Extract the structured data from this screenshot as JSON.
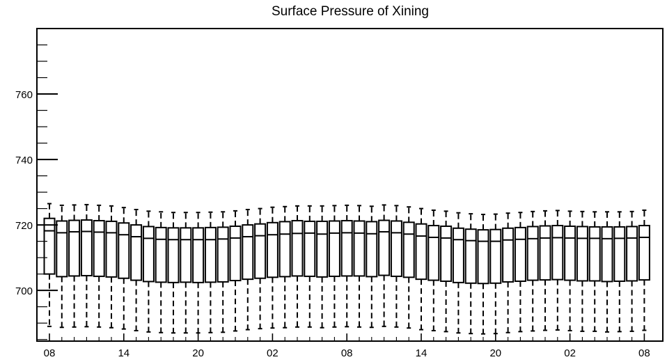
{
  "chart_data": {
    "type": "boxplot",
    "title": "Surface Pressure of Xining",
    "xlabel": "",
    "ylabel": "",
    "ylim": [
      684.5,
      780
    ],
    "y_ticks": [
      700,
      720,
      740,
      760
    ],
    "y_tick_labels": [
      "700",
      "720",
      "740",
      "760"
    ],
    "x_tick_labels": [
      "08",
      "14",
      "20",
      "02",
      "08",
      "14",
      "20",
      "02",
      "08"
    ],
    "x_tick_positions": [
      0,
      6,
      12,
      18,
      24,
      30,
      36,
      42,
      48
    ],
    "grid": false,
    "box_count": 49,
    "boxes": {
      "q3": [
        722.0,
        721.2,
        721.4,
        721.5,
        721.3,
        721.1,
        720.6,
        720.0,
        719.5,
        719.2,
        719.1,
        719.1,
        719.1,
        719.2,
        719.3,
        719.6,
        720.0,
        720.3,
        720.7,
        721.0,
        721.3,
        721.1,
        721.1,
        721.2,
        721.3,
        721.2,
        721.0,
        721.4,
        721.2,
        720.8,
        720.3,
        719.8,
        719.6,
        719.0,
        718.7,
        718.5,
        718.6,
        719.0,
        719.2,
        719.5,
        719.7,
        719.8,
        719.6,
        719.5,
        719.4,
        719.4,
        719.4,
        719.5,
        719.8
      ],
      "median": [
        718.2,
        717.6,
        717.9,
        718.0,
        717.8,
        717.6,
        717.0,
        716.4,
        715.9,
        715.6,
        715.5,
        715.5,
        715.5,
        715.5,
        715.7,
        716.0,
        716.4,
        716.7,
        717.0,
        717.2,
        717.4,
        717.5,
        717.2,
        717.5,
        717.6,
        717.5,
        717.3,
        717.9,
        717.6,
        717.2,
        716.6,
        716.2,
        716.0,
        715.5,
        715.2,
        715.0,
        715.0,
        715.4,
        715.6,
        715.8,
        716.0,
        716.1,
        716.0,
        715.9,
        715.9,
        715.8,
        715.9,
        716.0,
        716.2
      ],
      "q1": [
        705.0,
        704.2,
        704.4,
        704.5,
        704.3,
        704.1,
        703.7,
        703.1,
        702.7,
        702.5,
        702.4,
        702.5,
        702.4,
        702.5,
        702.6,
        703.0,
        703.4,
        703.7,
        704.0,
        704.2,
        704.4,
        704.3,
        704.1,
        704.3,
        704.4,
        704.4,
        704.2,
        704.6,
        704.3,
        704.0,
        703.4,
        703.1,
        702.8,
        702.4,
        702.2,
        702.1,
        702.2,
        702.6,
        702.8,
        703.1,
        703.2,
        703.3,
        703.1,
        702.9,
        702.9,
        702.7,
        702.8,
        702.9,
        703.2
      ],
      "whisker_high": [
        726.5,
        726.0,
        726.1,
        726.2,
        726.0,
        725.8,
        725.3,
        724.7,
        724.2,
        724.0,
        723.8,
        723.8,
        723.8,
        723.9,
        724.0,
        724.3,
        724.7,
        725.0,
        725.4,
        725.6,
        725.8,
        725.8,
        725.8,
        725.9,
        726.0,
        725.9,
        725.7,
        726.1,
        725.9,
        725.5,
        725.0,
        724.5,
        724.2,
        723.7,
        723.4,
        723.2,
        723.3,
        723.6,
        723.8,
        724.1,
        724.3,
        724.4,
        724.2,
        724.1,
        724.0,
        724.0,
        724.0,
        724.1,
        724.5
      ],
      "whisker_low": [
        689.0,
        688.7,
        688.8,
        688.9,
        688.8,
        688.6,
        688.2,
        687.7,
        687.3,
        687.1,
        687.0,
        687.0,
        687.0,
        687.1,
        687.2,
        687.6,
        688.0,
        688.3,
        688.5,
        688.6,
        688.8,
        688.8,
        688.6,
        688.8,
        688.9,
        688.8,
        688.7,
        689.0,
        688.8,
        688.5,
        688.0,
        687.7,
        687.4,
        687.0,
        686.8,
        686.7,
        686.8,
        687.1,
        687.4,
        687.6,
        687.8,
        687.9,
        687.7,
        687.5,
        687.5,
        687.3,
        687.4,
        687.5,
        687.8
      ]
    }
  }
}
